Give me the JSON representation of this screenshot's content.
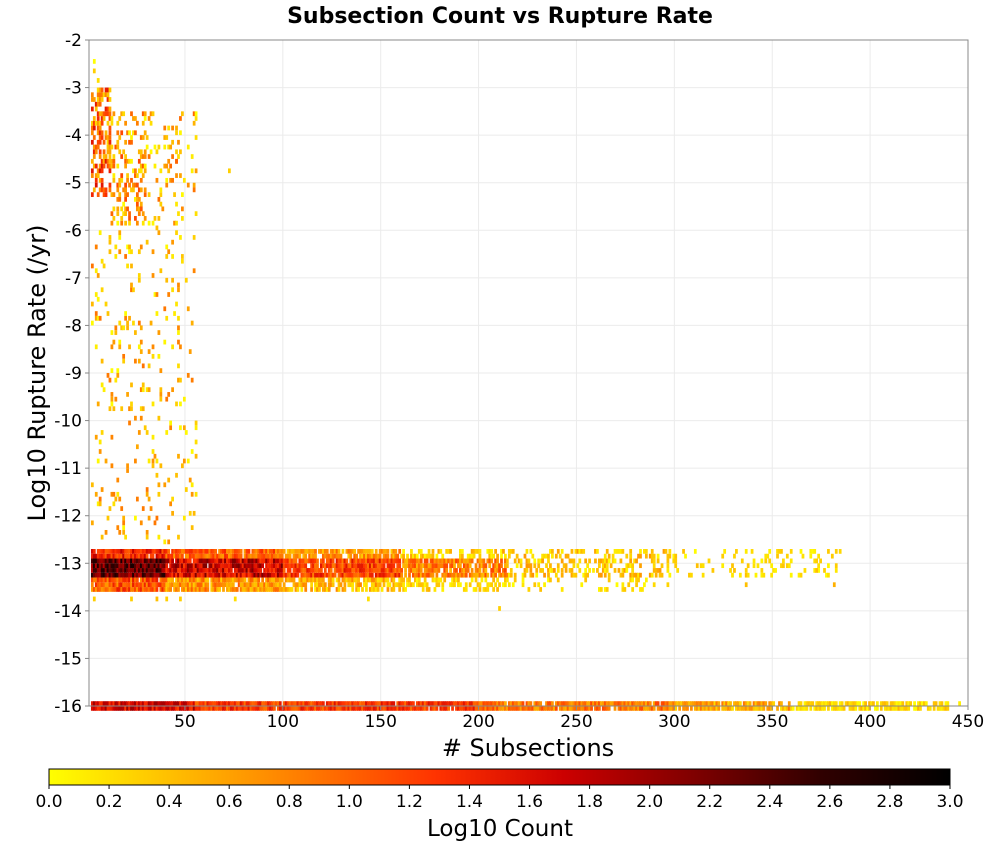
{
  "chart_data": {
    "type": "heatmap",
    "title": "Subsection Count vs Rupture Rate",
    "xlabel": "# Subsections",
    "ylabel": "Log10 Rupture Rate (/yr)",
    "xlim": [
      1,
      450
    ],
    "ylim": [
      -16,
      -2
    ],
    "x_ticks": [
      50,
      100,
      150,
      200,
      250,
      300,
      350,
      400,
      450
    ],
    "y_ticks": [
      -2,
      -3,
      -4,
      -5,
      -6,
      -7,
      -8,
      -9,
      -10,
      -11,
      -12,
      -13,
      -14,
      -15,
      -16
    ],
    "grid": true,
    "x_bin_width": 1,
    "y_bin_width": 0.1,
    "colorbar": {
      "label": "Log10 Count",
      "range": [
        0.0,
        3.0
      ],
      "ticks": [
        "0.0",
        "0.2",
        "0.4",
        "0.6",
        "0.8",
        "1.0",
        "1.2",
        "1.4",
        "1.6",
        "1.8",
        "2.0",
        "2.2",
        "2.4",
        "2.6",
        "2.8",
        "3.0"
      ],
      "colors": [
        "#ffff00",
        "#ffbb00",
        "#ff7a00",
        "#ff3300",
        "#cc0000",
        "#800000",
        "#300000",
        "#000000"
      ]
    },
    "regions": [
      {
        "x": [
          2,
          55
        ],
        "y": [
          -16.1,
          -15.9
        ],
        "value": [
          1.2,
          2.0
        ],
        "density": 1.0
      },
      {
        "x": [
          55,
          200
        ],
        "y": [
          -16.1,
          -15.9
        ],
        "value": [
          0.9,
          1.6
        ],
        "density": 0.97
      },
      {
        "x": [
          200,
          300
        ],
        "y": [
          -16.1,
          -15.9
        ],
        "value": [
          0.5,
          1.2
        ],
        "density": 0.93
      },
      {
        "x": [
          300,
          360
        ],
        "y": [
          -16.1,
          -15.9
        ],
        "value": [
          0.2,
          0.9
        ],
        "density": 0.88
      },
      {
        "x": [
          360,
          440
        ],
        "y": [
          -16.1,
          -15.9
        ],
        "value": [
          0.0,
          0.5
        ],
        "density": 0.75
      },
      {
        "x": [
          2,
          40
        ],
        "y": [
          -13.3,
          -12.9
        ],
        "value": [
          1.8,
          2.8
        ],
        "density": 1.0
      },
      {
        "x": [
          2,
          40
        ],
        "y": [
          -12.9,
          -12.7
        ],
        "value": [
          1.0,
          1.8
        ],
        "density": 0.97
      },
      {
        "x": [
          2,
          40
        ],
        "y": [
          -13.6,
          -13.3
        ],
        "value": [
          0.6,
          1.5
        ],
        "density": 0.95
      },
      {
        "x": [
          40,
          100
        ],
        "y": [
          -13.3,
          -12.9
        ],
        "value": [
          1.2,
          2.2
        ],
        "density": 0.97
      },
      {
        "x": [
          40,
          100
        ],
        "y": [
          -12.9,
          -12.7
        ],
        "value": [
          0.6,
          1.4
        ],
        "density": 0.92
      },
      {
        "x": [
          40,
          100
        ],
        "y": [
          -13.6,
          -13.3
        ],
        "value": [
          0.3,
          1.1
        ],
        "density": 0.9
      },
      {
        "x": [
          100,
          160
        ],
        "y": [
          -13.3,
          -12.9
        ],
        "value": [
          0.8,
          1.6
        ],
        "density": 0.93
      },
      {
        "x": [
          100,
          160
        ],
        "y": [
          -12.9,
          -12.7
        ],
        "value": [
          0.3,
          1.0
        ],
        "density": 0.78
      },
      {
        "x": [
          100,
          160
        ],
        "y": [
          -13.6,
          -13.3
        ],
        "value": [
          0.1,
          0.8
        ],
        "density": 0.72
      },
      {
        "x": [
          160,
          215
        ],
        "y": [
          -13.3,
          -12.9
        ],
        "value": [
          0.4,
          1.2
        ],
        "density": 0.78
      },
      {
        "x": [
          160,
          215
        ],
        "y": [
          -12.9,
          -12.7
        ],
        "value": [
          0.0,
          0.6
        ],
        "density": 0.45
      },
      {
        "x": [
          160,
          215
        ],
        "y": [
          -13.6,
          -13.3
        ],
        "value": [
          0.0,
          0.5
        ],
        "density": 0.4
      },
      {
        "x": [
          215,
          300
        ],
        "y": [
          -13.3,
          -12.7
        ],
        "value": [
          0.0,
          0.7
        ],
        "density": 0.38
      },
      {
        "x": [
          215,
          300
        ],
        "y": [
          -13.6,
          -13.3
        ],
        "value": [
          0.0,
          0.4
        ],
        "density": 0.12
      },
      {
        "x": [
          300,
          385
        ],
        "y": [
          -13.3,
          -12.7
        ],
        "value": [
          0.0,
          0.4
        ],
        "density": 0.16
      },
      {
        "x": [
          2,
          12
        ],
        "y": [
          -5.3,
          -3.0
        ],
        "value": [
          0.2,
          1.6
        ],
        "density": 0.55
      },
      {
        "x": [
          12,
          30
        ],
        "y": [
          -5.9,
          -3.5
        ],
        "value": [
          0.0,
          1.2
        ],
        "density": 0.28
      },
      {
        "x": [
          30,
          56
        ],
        "y": [
          -5.9,
          -3.5
        ],
        "value": [
          0.0,
          1.0
        ],
        "density": 0.12
      },
      {
        "x": [
          2,
          56
        ],
        "y": [
          -12.6,
          -6.0
        ],
        "value": [
          0.0,
          0.9
        ],
        "density": 0.07
      }
    ],
    "points": [
      {
        "x": 3,
        "y": -2.5,
        "value": 0.0
      },
      {
        "x": 3,
        "y": -2.7,
        "value": 0.3
      },
      {
        "x": 5,
        "y": -2.9,
        "value": 0.2
      },
      {
        "x": 72,
        "y": -4.8,
        "value": 0.3
      },
      {
        "x": 55,
        "y": -3.7,
        "value": 0.2
      },
      {
        "x": 45,
        "y": -4.0,
        "value": 0.3
      },
      {
        "x": 45,
        "y": -4.6,
        "value": 1.0
      },
      {
        "x": 35,
        "y": -6.0,
        "value": 0.4
      },
      {
        "x": 55,
        "y": -5.7,
        "value": 0.2
      },
      {
        "x": 40,
        "y": -7.9,
        "value": 0.2
      },
      {
        "x": 40,
        "y": -10.3,
        "value": 0.1
      },
      {
        "x": 55,
        "y": -10.5,
        "value": 0.2
      },
      {
        "x": 45,
        "y": -9.7,
        "value": 0.3
      },
      {
        "x": 45,
        "y": -11.2,
        "value": 0.4
      },
      {
        "x": 50,
        "y": -11.5,
        "value": 0.3
      },
      {
        "x": 3,
        "y": -13.8,
        "value": 0.3
      },
      {
        "x": 22,
        "y": -13.8,
        "value": 0.3
      },
      {
        "x": 35,
        "y": -13.8,
        "value": 0.4
      },
      {
        "x": 40,
        "y": -13.8,
        "value": 0.3
      },
      {
        "x": 47,
        "y": -13.8,
        "value": 0.3
      },
      {
        "x": 75,
        "y": -13.8,
        "value": 0.2
      },
      {
        "x": 143,
        "y": -13.8,
        "value": 0.2
      },
      {
        "x": 210,
        "y": -14.0,
        "value": 0.3
      },
      {
        "x": 336,
        "y": -13.5,
        "value": 0.4
      },
      {
        "x": 382,
        "y": -12.8,
        "value": 0.3
      },
      {
        "x": 381,
        "y": -13.5,
        "value": 0.5
      },
      {
        "x": 372,
        "y": -13.2,
        "value": 0.4
      },
      {
        "x": 353,
        "y": -12.8,
        "value": 0.3
      },
      {
        "x": 366,
        "y": -13.2,
        "value": 0.2
      },
      {
        "x": 376,
        "y": -13.2,
        "value": 0.3
      },
      {
        "x": 445,
        "y": -16.0,
        "value": 0.1
      }
    ]
  }
}
